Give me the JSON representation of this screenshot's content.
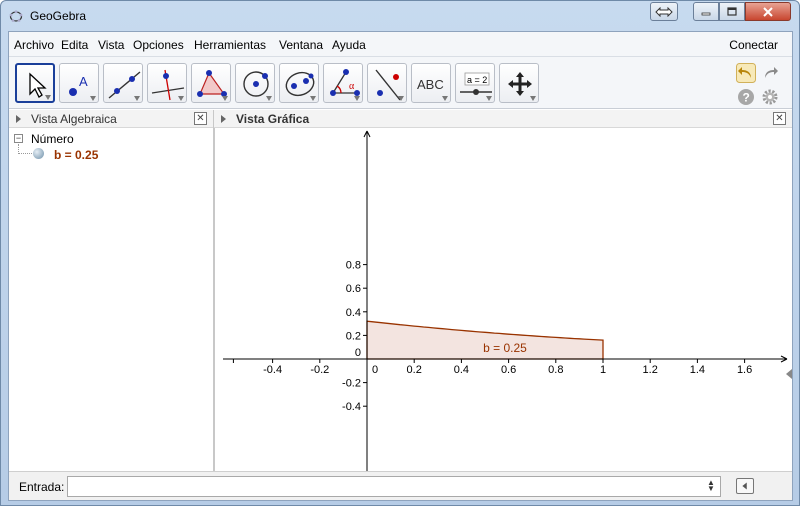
{
  "window": {
    "title": "GeoGebra"
  },
  "menu": {
    "items": [
      "Archivo",
      "Edita",
      "Vista",
      "Opciones",
      "Herramientas",
      "Ventana",
      "Ayuda"
    ],
    "connect": "Conectar"
  },
  "toolbar": {
    "tools": [
      {
        "icon": "move-pointer-icon"
      },
      {
        "icon": "point-icon",
        "text": "A"
      },
      {
        "icon": "line-icon"
      },
      {
        "icon": "perpendicular-icon"
      },
      {
        "icon": "polygon-icon"
      },
      {
        "icon": "circle-icon"
      },
      {
        "icon": "ellipse-icon"
      },
      {
        "icon": "angle-icon",
        "text": "α"
      },
      {
        "icon": "reflect-icon"
      },
      {
        "icon": "text-icon",
        "text": "ABC"
      },
      {
        "icon": "slider-icon",
        "text": "a = 2"
      },
      {
        "icon": "move-view-icon"
      }
    ]
  },
  "algebra": {
    "title": "Vista Algebraica",
    "category": "Número",
    "objects": [
      {
        "label": "b = 0.25",
        "color": "#993300"
      }
    ]
  },
  "graphics": {
    "title": "Vista Gráfica",
    "x_ticks": [
      "-0.4",
      "-0.2",
      "0",
      "0.2",
      "0.4",
      "0.6",
      "0.8",
      "1",
      "1.2",
      "1.4",
      "1.6"
    ],
    "y_ticks": [
      "0.8",
      "0.6",
      "0.4",
      "0.2",
      "0",
      "-0.2",
      "-0.4"
    ],
    "region_label": "b = 0.25",
    "region_color": "#993300",
    "region_fill": "#f3e4e0"
  },
  "input": {
    "label": "Entrada:",
    "value": ""
  }
}
